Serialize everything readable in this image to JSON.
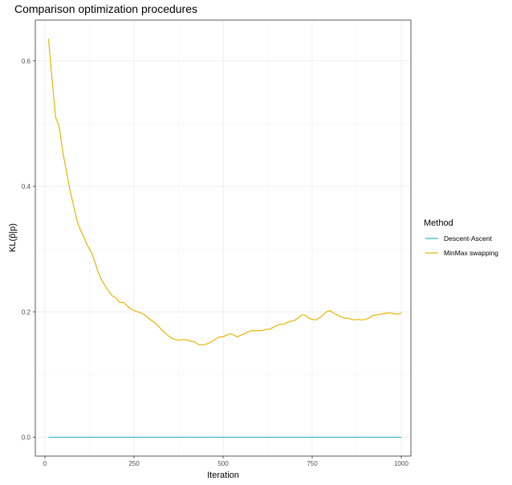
{
  "chart_data": {
    "type": "line",
    "title": "Comparison optimization procedures",
    "xlabel": "Iteration",
    "ylabel": "KL(p̂|p)",
    "xlim": [
      -27,
      1027
    ],
    "ylim": [
      -0.03,
      0.665
    ],
    "x_ticks": [
      0,
      250,
      500,
      750,
      1000
    ],
    "y_ticks": [
      0.0,
      0.2,
      0.4,
      0.6
    ],
    "x_tick_labels": [
      "0",
      "250",
      "500",
      "750",
      "1000"
    ],
    "y_tick_labels": [
      "0.0",
      "0.2",
      "0.4",
      "0.6"
    ],
    "grid": true,
    "legend": {
      "title": "Method",
      "position": "right"
    },
    "series": [
      {
        "name": "Descent-Ascent",
        "color": "#25b7c5",
        "x": [
          10,
          1000
        ],
        "y": [
          0.0,
          0.0
        ]
      },
      {
        "name": "MinMax swapping",
        "color": "#e9b400",
        "x": [
          10,
          20,
          30,
          40,
          50,
          60,
          70,
          80,
          90,
          100,
          110,
          120,
          130,
          140,
          150,
          160,
          170,
          180,
          190,
          200,
          210,
          220,
          230,
          240,
          250,
          260,
          270,
          280,
          290,
          300,
          310,
          320,
          330,
          340,
          350,
          360,
          370,
          380,
          390,
          400,
          410,
          420,
          430,
          440,
          450,
          460,
          470,
          480,
          490,
          500,
          510,
          520,
          530,
          540,
          550,
          560,
          570,
          580,
          590,
          600,
          610,
          620,
          630,
          640,
          650,
          660,
          670,
          680,
          690,
          700,
          710,
          720,
          730,
          740,
          750,
          760,
          770,
          780,
          790,
          800,
          810,
          820,
          830,
          840,
          850,
          860,
          870,
          880,
          890,
          900,
          910,
          920,
          930,
          940,
          950,
          960,
          970,
          980,
          990,
          1000
        ],
        "y": [
          0.635,
          0.57,
          0.51,
          0.495,
          0.455,
          0.425,
          0.395,
          0.37,
          0.345,
          0.33,
          0.318,
          0.305,
          0.295,
          0.28,
          0.262,
          0.25,
          0.24,
          0.232,
          0.225,
          0.222,
          0.215,
          0.215,
          0.21,
          0.205,
          0.202,
          0.2,
          0.198,
          0.195,
          0.19,
          0.186,
          0.182,
          0.176,
          0.17,
          0.165,
          0.16,
          0.157,
          0.155,
          0.155,
          0.156,
          0.155,
          0.153,
          0.152,
          0.148,
          0.147,
          0.148,
          0.15,
          0.153,
          0.157,
          0.16,
          0.16,
          0.163,
          0.165,
          0.163,
          0.16,
          0.163,
          0.165,
          0.168,
          0.17,
          0.17,
          0.17,
          0.17,
          0.172,
          0.172,
          0.175,
          0.178,
          0.18,
          0.18,
          0.183,
          0.185,
          0.186,
          0.19,
          0.195,
          0.195,
          0.19,
          0.188,
          0.187,
          0.19,
          0.195,
          0.2,
          0.202,
          0.198,
          0.195,
          0.192,
          0.19,
          0.19,
          0.188,
          0.187,
          0.188,
          0.187,
          0.188,
          0.19,
          0.194,
          0.195,
          0.196,
          0.197,
          0.198,
          0.198,
          0.197,
          0.196,
          0.198
        ]
      }
    ]
  }
}
